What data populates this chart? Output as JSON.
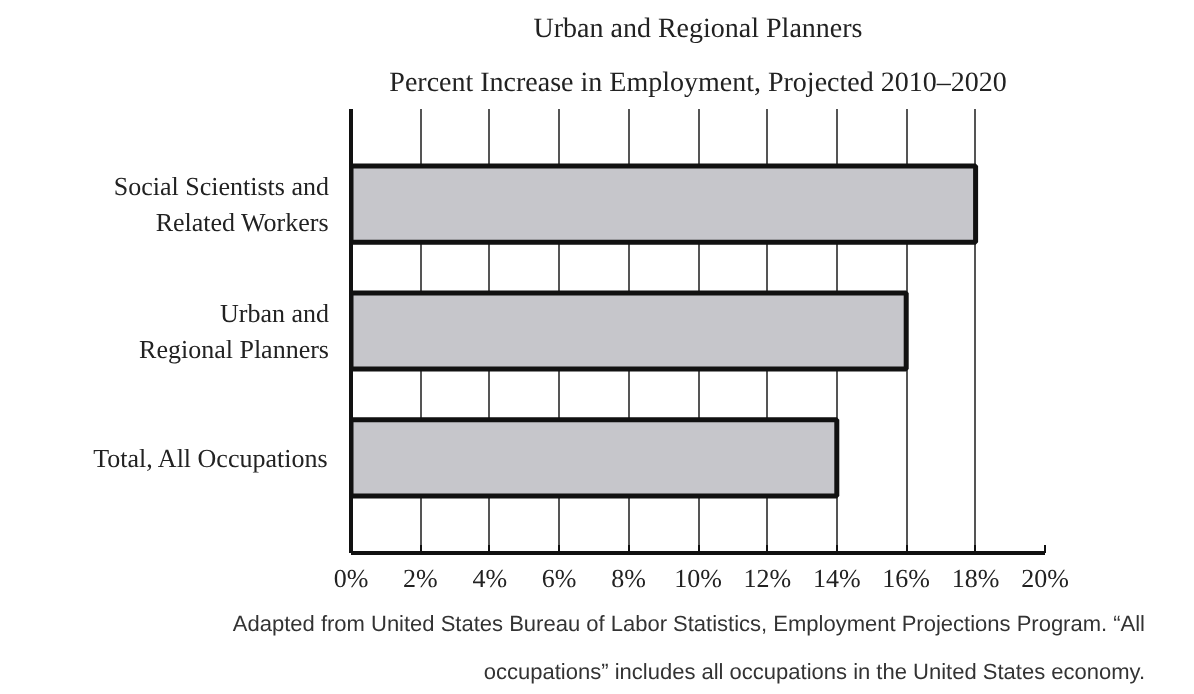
{
  "chart_data": {
    "type": "bar",
    "orientation": "horizontal",
    "title": "Urban and Regional Planners",
    "subtitle": "Percent Increase in Employment, Projected 2010–2020",
    "categories": [
      "Social Scientists and\nRelated Workers",
      "Urban and\nRegional Planners",
      "Total, All Occupations"
    ],
    "values": [
      18,
      16,
      14
    ],
    "color": "#c6c6cb",
    "xlim": [
      0,
      20
    ],
    "xticks": [
      {
        "value": 0,
        "label": "0%"
      },
      {
        "value": 2,
        "label": "2%"
      },
      {
        "value": 4,
        "label": "4%"
      },
      {
        "value": 6,
        "label": "6%"
      },
      {
        "value": 8,
        "label": "8%"
      },
      {
        "value": 10,
        "label": "10%"
      },
      {
        "value": 12,
        "label": "12%"
      },
      {
        "value": 14,
        "label": "14%"
      },
      {
        "value": 16,
        "label": "16%"
      },
      {
        "value": 18,
        "label": "18%"
      },
      {
        "value": 20,
        "label": "20%"
      }
    ],
    "grid": "x",
    "annotations": [
      "Adapted from United States Bureau of Labor Statistics, Employment Projections Program. “All occupations” includes all occupations in the United States economy."
    ]
  }
}
